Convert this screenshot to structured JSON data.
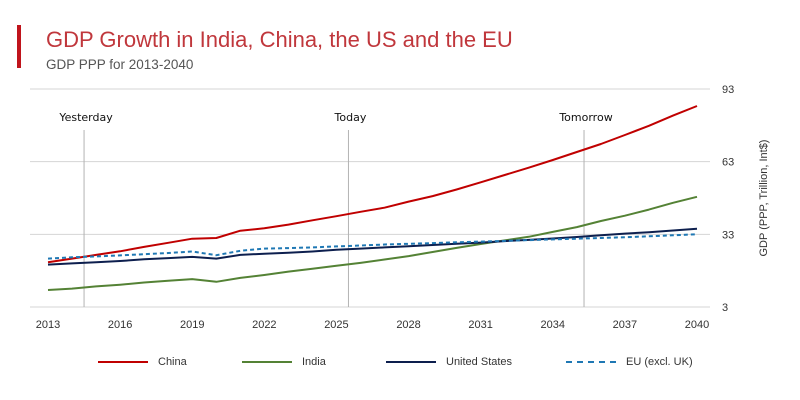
{
  "header": {
    "title": "GDP Growth in India, China, the US and the EU",
    "subtitle": "GDP PPP for 2013-2040"
  },
  "colors": {
    "accent": "#c0141c",
    "title": "#c0373c"
  },
  "chart_data": {
    "type": "line",
    "title": "GDP Growth in India, China, the US and the EU",
    "subtitle": "GDP PPP for 2013-2040",
    "xlabel": "",
    "ylabel": "GDP (PPP, Trillion, Int$)",
    "xlim": [
      2013,
      2040
    ],
    "ylim": [
      3,
      93
    ],
    "x_ticks": [
      "2013",
      "2016",
      "2019",
      "2022",
      "2025",
      "2028",
      "2031",
      "2034",
      "2037",
      "2040"
    ],
    "y_ticks": [
      "3",
      "33",
      "63",
      "93"
    ],
    "y_tick_values": [
      3,
      33,
      63,
      93
    ],
    "grid": "horizontal",
    "legend_position": "bottom",
    "annotations": [
      {
        "label": "Yesterday",
        "x": 2014.5
      },
      {
        "label": "Today",
        "x": 2025.5
      },
      {
        "label": "Tomorrow",
        "x": 2035.3
      }
    ],
    "x": [
      2013,
      2014,
      2015,
      2016,
      2017,
      2018,
      2019,
      2020,
      2021,
      2022,
      2023,
      2024,
      2025,
      2026,
      2027,
      2028,
      2029,
      2030,
      2031,
      2032,
      2033,
      2034,
      2035,
      2036,
      2037,
      2038,
      2039,
      2040
    ],
    "series": [
      {
        "name": "China",
        "color": "#c00000",
        "dash": false,
        "values": [
          21.5,
          23.0,
          24.5,
          26.0,
          27.8,
          29.5,
          31.2,
          31.5,
          34.5,
          35.5,
          37.0,
          38.8,
          40.5,
          42.3,
          44.0,
          46.5,
          48.8,
          51.5,
          54.5,
          57.5,
          60.5,
          63.7,
          67.0,
          70.3,
          74.0,
          77.8,
          82.0,
          86.0
        ]
      },
      {
        "name": "India",
        "color": "#548235",
        "dash": false,
        "values": [
          10.0,
          10.6,
          11.5,
          12.2,
          13.1,
          13.8,
          14.5,
          13.4,
          15.0,
          16.2,
          17.6,
          18.8,
          20.0,
          21.2,
          22.6,
          24.0,
          25.7,
          27.4,
          29.0,
          30.5,
          32.0,
          34.0,
          36.0,
          38.5,
          40.7,
          43.2,
          46.0,
          48.5
        ]
      },
      {
        "name": "United States",
        "color": "#0d1f4e",
        "dash": false,
        "values": [
          20.5,
          21.0,
          21.5,
          22.0,
          22.7,
          23.2,
          23.7,
          23.0,
          24.5,
          25.0,
          25.4,
          25.9,
          26.6,
          27.1,
          27.6,
          28.1,
          28.6,
          29.1,
          29.6,
          30.2,
          30.7,
          31.3,
          31.9,
          32.6,
          33.3,
          33.9,
          34.6,
          35.3
        ]
      },
      {
        "name": "EU (excl. UK)",
        "color": "#1f78b4",
        "dash": true,
        "values": [
          23.0,
          23.5,
          23.9,
          24.3,
          24.8,
          25.3,
          25.9,
          24.4,
          26.2,
          27.1,
          27.3,
          27.6,
          28.0,
          28.4,
          28.8,
          29.1,
          29.4,
          29.7,
          30.0,
          30.3,
          30.6,
          30.9,
          31.2,
          31.5,
          31.8,
          32.2,
          32.6,
          33.0
        ]
      }
    ]
  }
}
